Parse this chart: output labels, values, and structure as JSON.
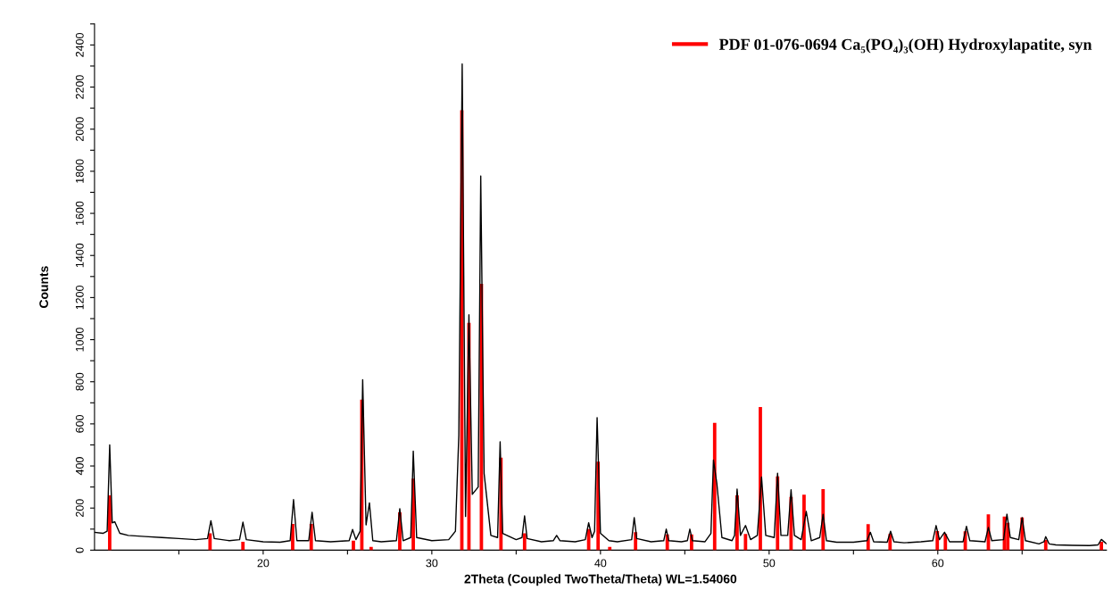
{
  "chart_data": {
    "type": "line",
    "xlabel": "2Theta (Coupled TwoTheta/Theta) WL=1.54060",
    "ylabel": "Counts",
    "xlim": [
      10,
      70
    ],
    "ylim": [
      0,
      2500
    ],
    "xticks": [
      {
        "value": 15,
        "label": null
      },
      20,
      {
        "value": 25,
        "label": null
      },
      30,
      {
        "value": 35,
        "label": null
      },
      40,
      {
        "value": 45,
        "label": null
      },
      50,
      {
        "value": 55,
        "label": null
      },
      60,
      {
        "value": 65,
        "label": null
      }
    ],
    "yticks": [
      0,
      {
        "value": 100,
        "label": null
      },
      200,
      {
        "value": 300,
        "label": null
      },
      400,
      {
        "value": 500,
        "label": null
      },
      600,
      {
        "value": 700,
        "label": null
      },
      800,
      {
        "value": 900,
        "label": null
      },
      1000,
      {
        "value": 1100,
        "label": null
      },
      1200,
      {
        "value": 1300,
        "label": null
      },
      1400,
      {
        "value": 1500,
        "label": null
      },
      1600,
      {
        "value": 1700,
        "label": null
      },
      1800,
      {
        "value": 1900,
        "label": null
      },
      2000,
      {
        "value": 2100,
        "label": null
      },
      2200,
      {
        "value": 2300,
        "label": null
      },
      2400,
      {
        "value": 2500,
        "label": null
      }
    ],
    "grid": false,
    "legend": "top right",
    "series": [
      {
        "color": "#000000",
        "x": [
          10.0,
          10.5,
          10.75,
          10.9,
          11.05,
          11.2,
          11.5,
          12,
          13,
          14,
          15,
          16,
          16.7,
          16.9,
          17.1,
          18,
          18.6,
          18.8,
          19.0,
          20,
          21,
          21.6,
          21.8,
          22.0,
          22.7,
          22.9,
          23.1,
          24,
          25.1,
          25.3,
          25.5,
          25.75,
          25.9,
          26.1,
          26.3,
          26.5,
          27,
          27.9,
          28.1,
          28.3,
          28.75,
          28.9,
          29.1,
          30,
          31,
          31.4,
          31.6,
          31.8,
          32.0,
          32.2,
          32.4,
          32.75,
          32.9,
          33.1,
          33.5,
          33.9,
          34.05,
          34.2,
          35,
          35.35,
          35.5,
          35.65,
          36.5,
          37.2,
          37.4,
          37.6,
          38.5,
          39.1,
          39.3,
          39.5,
          39.65,
          39.8,
          40.0,
          40.5,
          41,
          41.85,
          42.0,
          42.15,
          43,
          43.75,
          43.9,
          44.05,
          44.8,
          45.15,
          45.3,
          45.45,
          46.2,
          46.55,
          46.7,
          46.9,
          47.2,
          47.8,
          47.95,
          48.1,
          48.3,
          48.6,
          48.9,
          49.3,
          49.55,
          49.8,
          50.3,
          50.5,
          50.7,
          51.1,
          51.3,
          51.5,
          51.9,
          52.2,
          52.5,
          53.0,
          53.2,
          53.4,
          54,
          55,
          55.8,
          56.0,
          56.2,
          57.0,
          57.2,
          57.4,
          58,
          59,
          59.7,
          59.9,
          60.1,
          60.4,
          60.7,
          61.5,
          61.7,
          61.9,
          62.8,
          63.0,
          63.2,
          63.9,
          64.1,
          64.3,
          64.8,
          65.0,
          65.2,
          66,
          66.3,
          66.4,
          66.6,
          67,
          68,
          69,
          69.5,
          69.7,
          70.0
        ],
        "values": [
          85,
          80,
          90,
          500,
          130,
          135,
          80,
          70,
          65,
          60,
          55,
          50,
          55,
          140,
          55,
          45,
          50,
          133,
          50,
          40,
          38,
          45,
          240,
          45,
          45,
          180,
          45,
          40,
          45,
          98,
          50,
          90,
          810,
          120,
          225,
          45,
          40,
          45,
          197,
          45,
          60,
          470,
          60,
          45,
          50,
          90,
          545,
          2310,
          160,
          1118,
          265,
          300,
          1778,
          365,
          70,
          60,
          515,
          80,
          50,
          60,
          163,
          55,
          40,
          45,
          70,
          45,
          40,
          50,
          130,
          60,
          90,
          630,
          80,
          45,
          40,
          50,
          155,
          55,
          40,
          45,
          100,
          45,
          40,
          45,
          100,
          45,
          40,
          80,
          428,
          317,
          60,
          45,
          70,
          290,
          70,
          117,
          50,
          70,
          347,
          70,
          60,
          365,
          70,
          70,
          287,
          70,
          50,
          184,
          45,
          60,
          170,
          45,
          38,
          38,
          45,
          85,
          40,
          38,
          90,
          40,
          35,
          40,
          45,
          117,
          50,
          85,
          40,
          40,
          113,
          45,
          40,
          108,
          45,
          50,
          171,
          60,
          50,
          155,
          45,
          30,
          40,
          64,
          30,
          25,
          23,
          22,
          25,
          51,
          30
        ]
      },
      {
        "type": "bar",
        "name": "PDF 01-076-0694 Ca₅(PO₄)₃(OH) Hydroxylapatite, syn",
        "color": "#ff0000",
        "x": [
          10.9,
          16.85,
          18.8,
          21.75,
          22.85,
          25.35,
          25.85,
          26.4,
          28.1,
          28.9,
          31.78,
          32.2,
          32.94,
          34.1,
          35.5,
          39.3,
          39.86,
          40.55,
          42.08,
          43.96,
          45.4,
          46.77,
          48.1,
          48.6,
          49.48,
          50.5,
          51.3,
          52.07,
          53.2,
          55.87,
          57.17,
          59.97,
          60.45,
          61.63,
          63.0,
          63.95,
          64.15,
          65.0,
          66.4,
          69.7
        ],
        "values": [
          260,
          80,
          40,
          125,
          125,
          45,
          715,
          15,
          180,
          340,
          2090,
          1080,
          1265,
          440,
          80,
          100,
          420,
          15,
          85,
          75,
          75,
          605,
          260,
          77,
          680,
          350,
          253,
          263,
          290,
          124,
          77,
          91,
          77,
          90,
          170,
          160,
          130,
          155,
          48,
          40
        ]
      }
    ]
  }
}
